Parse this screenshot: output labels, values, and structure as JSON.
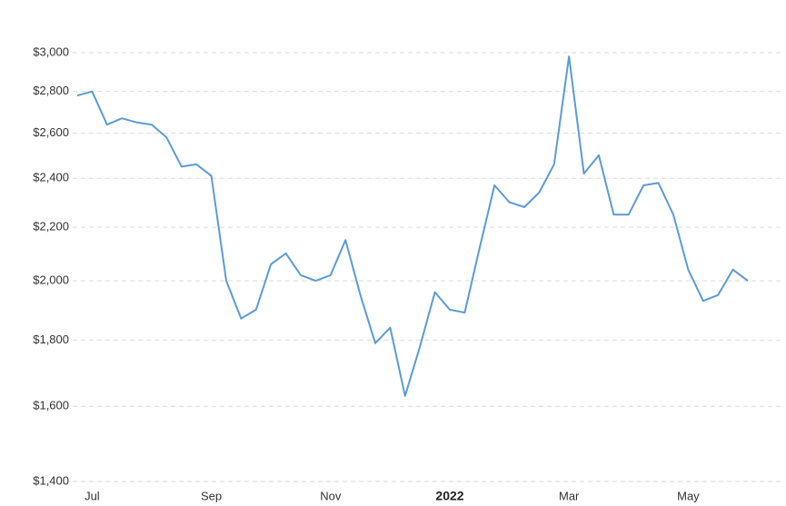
{
  "chart_data": {
    "type": "line",
    "categories": [
      null,
      "Jul",
      null,
      null,
      null,
      null,
      null,
      null,
      null,
      "Sep",
      null,
      null,
      null,
      null,
      null,
      null,
      null,
      "Nov",
      null,
      null,
      null,
      null,
      null,
      null,
      null,
      "2022",
      null,
      null,
      null,
      null,
      null,
      null,
      null,
      "Mar",
      null,
      null,
      null,
      null,
      null,
      null,
      null,
      "May",
      null,
      null,
      null,
      null
    ],
    "series": [
      {
        "color": "#5b9bd5",
        "values": [
          2780,
          2800,
          2640,
          2670,
          2650,
          2640,
          2580,
          2450,
          2460,
          2410,
          2000,
          1870,
          1900,
          2060,
          2100,
          2020,
          2000,
          2020,
          2150,
          1950,
          1790,
          1840,
          1630,
          1780,
          1960,
          1900,
          1890,
          2120,
          2370,
          2300,
          2280,
          2340,
          2460,
          2980,
          2420,
          2500,
          2250,
          2250,
          2370,
          2380,
          2250,
          2040,
          1930,
          1950,
          2040,
          2000
        ]
      }
    ],
    "ylim": [
      1400,
      3000
    ],
    "yticks": [
      {
        "value": 1400,
        "label": "$1,400"
      },
      {
        "value": 1600,
        "label": "$1,600"
      },
      {
        "value": 1800,
        "label": "$1,800"
      },
      {
        "value": 2000,
        "label": "$2,000"
      },
      {
        "value": 2200,
        "label": "$2,200"
      },
      {
        "value": 2400,
        "label": "$2,400"
      },
      {
        "value": 2600,
        "label": "$2,600"
      },
      {
        "value": 2800,
        "label": "$2,800"
      },
      {
        "value": 3000,
        "label": "$3,000"
      }
    ],
    "log_scale": true,
    "grid": true
  }
}
